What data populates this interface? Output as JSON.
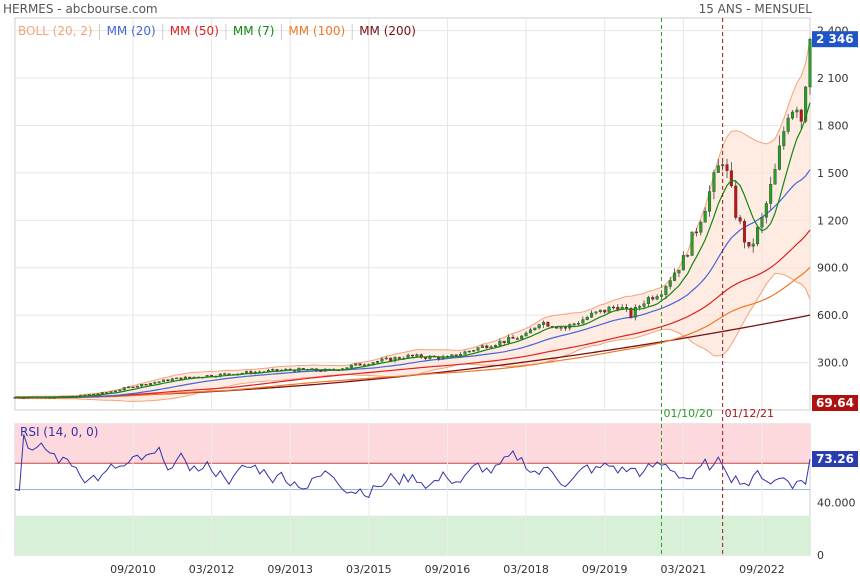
{
  "header": {
    "title": "HERMES - abcbourse.com",
    "period": "15 ANS - MENSUEL"
  },
  "colors": {
    "up": "#22a322",
    "down": "#cc1111",
    "boll": "#f4a27a",
    "boll_fill": "#fde3d6",
    "mm20": "#4466dd",
    "mm50": "#e02020",
    "mm7": "#118811",
    "mm100": "#f07828",
    "mm200": "#7a1010",
    "rsi": "#3333aa",
    "rsi_hi": "#fdd8dc",
    "rsi_lo": "#d8f0d8",
    "marker1": "#2a9d2a",
    "marker2": "#a01818",
    "last_price_bg": "#1f55c6",
    "last_vol_bg": "#b01010",
    "rsi_badge_bg": "#2a3db0"
  },
  "legend": [
    {
      "label": "BOLL (20, 2)",
      "color": "#f4a27a"
    },
    {
      "label": "MM (20)",
      "color": "#4466dd"
    },
    {
      "label": "MM (50)",
      "color": "#e02020"
    },
    {
      "label": "MM (7)",
      "color": "#118811"
    },
    {
      "label": "MM (100)",
      "color": "#f07828"
    },
    {
      "label": "MM (200)",
      "color": "#7a1010"
    }
  ],
  "markers": [
    {
      "label": "01/10/20",
      "date": "2020-10"
    },
    {
      "label": "01/12/21",
      "date": "2021-12"
    }
  ],
  "badges": {
    "last_price": "2 346",
    "last_volume": "69.64",
    "rsi": "73.26"
  },
  "rsi_label": "RSI (14, 0, 0)",
  "chart_data": [
    {
      "type": "candlestick",
      "title": "HERMES",
      "x_labels": [
        "09/2010",
        "03/2012",
        "09/2013",
        "03/2015",
        "09/2016",
        "03/2018",
        "09/2019",
        "03/2021",
        "09/2022"
      ],
      "y_ticks": [
        "300.0",
        "600.0",
        "900.0",
        "1 200",
        "1 500",
        "1 800",
        "2 100",
        "2 400"
      ],
      "ylim": [
        0,
        2480
      ],
      "xlim": [
        "2008-06",
        "2023-08"
      ],
      "anchors": [
        [
          "2008-06",
          80
        ],
        [
          "2009-06",
          82
        ],
        [
          "2010-03",
          110
        ],
        [
          "2010-09",
          150
        ],
        [
          "2011-06",
          195
        ],
        [
          "2012-03",
          220
        ],
        [
          "2013-01",
          240
        ],
        [
          "2013-09",
          255
        ],
        [
          "2014-06",
          250
        ],
        [
          "2015-03",
          300
        ],
        [
          "2015-12",
          340
        ],
        [
          "2016-09",
          330
        ],
        [
          "2017-06",
          410
        ],
        [
          "2018-03",
          470
        ],
        [
          "2018-06",
          560
        ],
        [
          "2018-12",
          520
        ],
        [
          "2019-06",
          600
        ],
        [
          "2019-12",
          660
        ],
        [
          "2020-03",
          600
        ],
        [
          "2020-06",
          690
        ],
        [
          "2020-10",
          760
        ],
        [
          "2021-03",
          950
        ],
        [
          "2021-06",
          1150
        ],
        [
          "2021-12",
          1600
        ],
        [
          "2022-03",
          1250
        ],
        [
          "2022-06",
          1000
        ],
        [
          "2022-09",
          1200
        ],
        [
          "2022-12",
          1500
        ],
        [
          "2023-03",
          1900
        ],
        [
          "2023-05",
          1950
        ],
        [
          "2023-06",
          1850
        ],
        [
          "2023-08",
          2346
        ]
      ],
      "series": [
        {
          "name": "BOLL (20, 2)"
        },
        {
          "name": "MM (20)"
        },
        {
          "name": "MM (50)"
        },
        {
          "name": "MM (7)"
        },
        {
          "name": "MM (100)"
        },
        {
          "name": "MM (200)"
        }
      ],
      "last_close": 2346
    },
    {
      "type": "line",
      "title": "RSI (14, 0, 0)",
      "y_ticks": [
        "0",
        "40.000"
      ],
      "hidden_tick": "80.000",
      "zones": {
        "oversold": 30,
        "overbought": 70
      },
      "last_value": 73.26
    }
  ]
}
